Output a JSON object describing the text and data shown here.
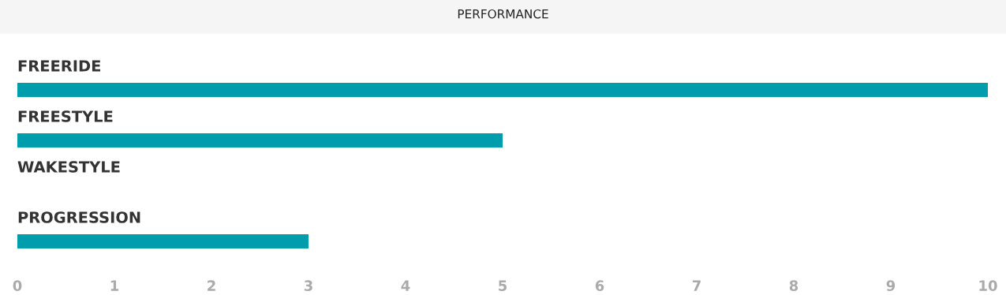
{
  "chart_data": {
    "type": "bar",
    "orientation": "horizontal",
    "title": "PERFORMANCE",
    "categories": [
      "FREERIDE",
      "FREESTYLE",
      "WAKESTYLE",
      "PROGRESSION"
    ],
    "values": [
      10,
      5,
      0,
      3
    ],
    "color": "#009dac",
    "xlim": [
      0,
      10
    ],
    "xticks": [
      0,
      1,
      2,
      3,
      4,
      5,
      6,
      7,
      8,
      9,
      10
    ],
    "grid": false,
    "legend": false
  }
}
